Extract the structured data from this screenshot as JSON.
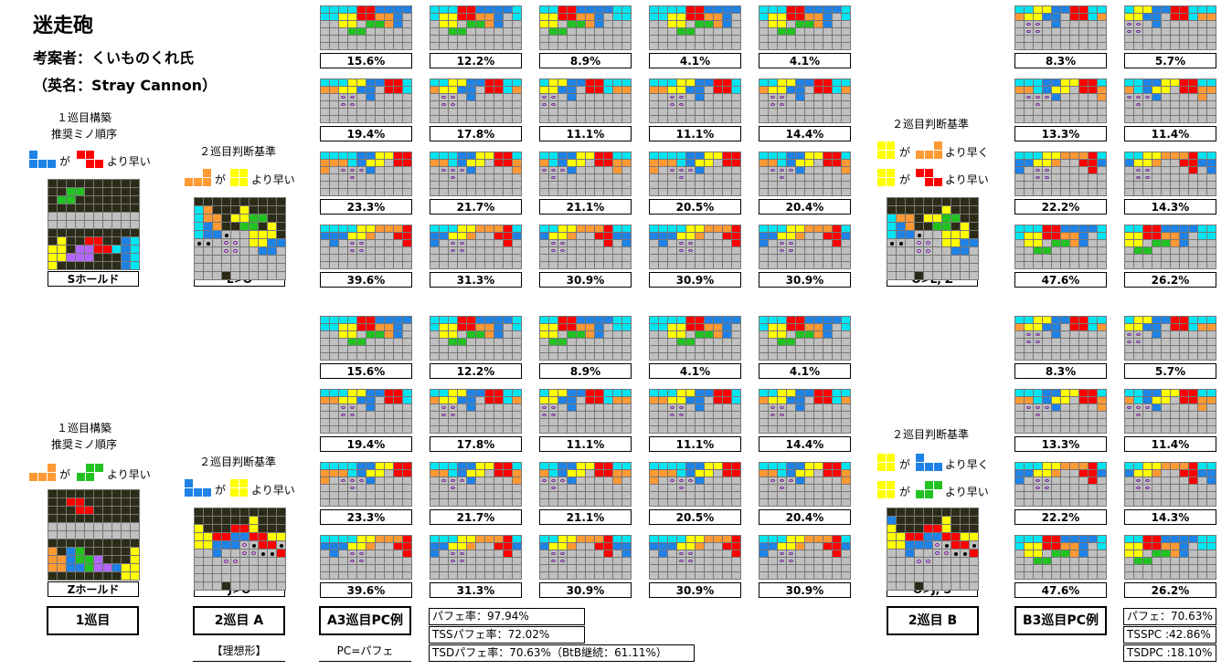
{
  "header": {
    "title": "迷走砲",
    "author": "考案者：くいものくれ氏",
    "english_name": "（英名：Stray Cannon）"
  },
  "colors": {
    "I": "#00e5f2",
    "O": "#ffff00",
    "T": "#b366ff",
    "S": "#22c222",
    "Z": "#ff0000",
    "J": "#1e82e6",
    "L": "#ff9933",
    "garbage": "#2b2b17",
    "empty": "#c0c0c0"
  },
  "section1": {
    "first_label_line1": "１巡目構築",
    "first_label_line2": "推奨ミノ順序",
    "first_order_text_ga": "が",
    "first_order_text_faster": "より早い",
    "first_hold_caption": "Sホールド",
    "second_label": "２巡目判断基準",
    "second_order_text_ga": "が",
    "second_order_text_faster": "より早い",
    "second_caption": "L>O",
    "right_label": "２巡目判断基準",
    "right_row1_ga": "が",
    "right_row1_faster": "より早く",
    "right_row2_ga": "が",
    "right_row2_faster": "より早い",
    "right_caption": "O>L, Z",
    "percent_grid": [
      [
        "15.6%",
        "12.2%",
        "8.9%",
        "4.1%",
        "4.1%"
      ],
      [
        "19.4%",
        "17.8%",
        "11.1%",
        "11.1%",
        "14.4%"
      ],
      [
        "23.3%",
        "21.7%",
        "21.1%",
        "20.5%",
        "20.4%"
      ],
      [
        "39.6%",
        "31.3%",
        "30.9%",
        "30.9%",
        "30.9%"
      ]
    ],
    "right_percent_grid": [
      [
        "8.3%",
        "5.7%"
      ],
      [
        "13.3%",
        "11.4%"
      ],
      [
        "22.2%",
        "14.3%"
      ],
      [
        "47.6%",
        "26.2%"
      ]
    ]
  },
  "section2": {
    "first_label_line1": "１巡目構築",
    "first_label_line2": "推奨ミノ順序",
    "first_order_text_ga": "が",
    "first_order_text_faster": "より早い",
    "first_hold_caption": "Zホールド",
    "second_label": "２巡目判断基準",
    "second_order_text_ga": "が",
    "second_order_text_faster": "より早い",
    "second_caption": "J>O",
    "right_label": "２巡目判断基準",
    "right_row1_ga": "が",
    "right_row1_faster": "より早く",
    "right_row2_ga": "が",
    "right_row2_faster": "より早い",
    "right_caption": "O>J, S",
    "percent_grid": [
      [
        "15.6%",
        "12.2%",
        "8.9%",
        "4.1%",
        "4.1%"
      ],
      [
        "19.4%",
        "17.8%",
        "11.1%",
        "11.1%",
        "14.4%"
      ],
      [
        "23.3%",
        "21.7%",
        "21.1%",
        "20.5%",
        "20.4%"
      ],
      [
        "39.6%",
        "31.3%",
        "30.9%",
        "30.9%",
        "30.9%"
      ]
    ],
    "right_percent_grid": [
      [
        "8.3%",
        "5.7%"
      ],
      [
        "13.3%",
        "11.4%"
      ],
      [
        "22.2%",
        "14.3%"
      ],
      [
        "47.6%",
        "26.2%"
      ]
    ]
  },
  "footer": {
    "btn_first": "1巡目",
    "btn_second_a": "2巡目 A",
    "ideal_note": "【理想形】",
    "btn_a3": "A3巡目PC例",
    "pc_note": "PC=パフェ",
    "stats_a": [
      "パフェ率：97.94%",
      "TSSパフェ率：72.02%",
      "TSDパフェ率：70.63%（BtB継続：61.11%）"
    ],
    "btn_second_b": "2巡目 B",
    "btn_b3": "B3巡目PC例",
    "stats_b": [
      "パフェ：70.63%",
      "TSSPC :42.86%",
      "TSDPC :18.10%"
    ]
  }
}
